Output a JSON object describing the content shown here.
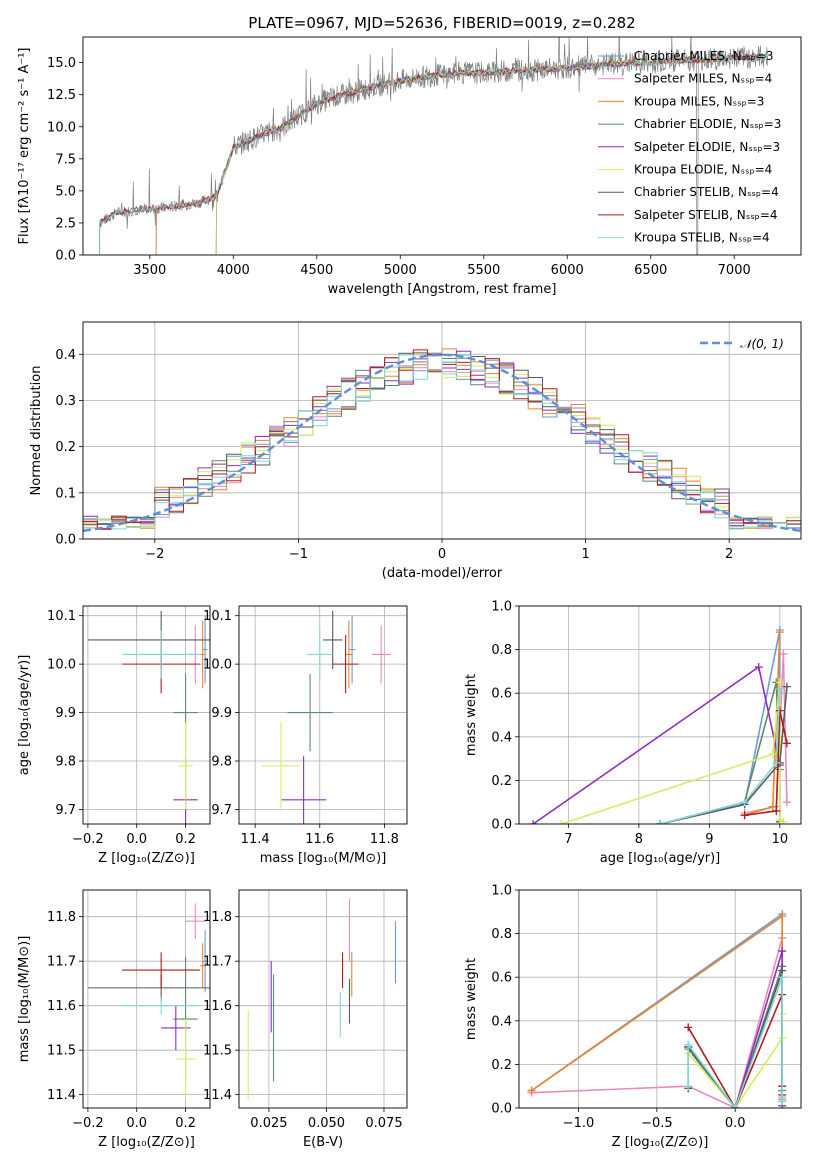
{
  "colors": {
    "Chabrier MILES": "#6a9bd8",
    "Salpeter MILES": "#e98abf",
    "Kroupa MILES": "#e8852d",
    "Chabrier ELODIE": "#5f8a6e",
    "Salpeter ELODIE": "#8e2fbf",
    "Kroupa ELODIE": "#d7ec5f",
    "Chabrier STELIB": "#5a5a5a",
    "Salpeter STELIB": "#b01b1b",
    "Kroupa STELIB": "#7fd8d8"
  },
  "chart_data": [
    {
      "id": "spectrum",
      "type": "line",
      "title": "PLATE=0967, MJD=52636, FIBERID=0019, z=0.282",
      "xlabel": "wavelength [Angstrom, rest frame]",
      "ylabel": "Flux [fλ10⁻¹⁷ erg cm⁻² s⁻¹ A⁻¹]",
      "xlim": [
        3100,
        7400
      ],
      "ylim": [
        0,
        17
      ],
      "xticks": [
        "3500",
        "4000",
        "4500",
        "5000",
        "5500",
        "6000",
        "6500",
        "7000"
      ],
      "yticks": [
        "0.0",
        "2.5",
        "5.0",
        "7.5",
        "10.0",
        "12.5",
        "15.0"
      ],
      "legend_position": "top-right",
      "legend": [
        "Chabrier MILES, Nₛₛₚ=3",
        "Salpeter MILES, Nₛₛₚ=4",
        "Kroupa MILES, Nₛₛₚ=3",
        "Chabrier ELODIE, Nₛₛₚ=3",
        "Salpeter ELODIE, Nₛₛₚ=3",
        "Kroupa ELODIE, Nₛₛₚ=4",
        "Chabrier STELIB, Nₛₛₚ=4",
        "Salpeter STELIB, Nₛₛₚ=4",
        "Kroupa STELIB, Nₛₛₚ=4"
      ],
      "series_models": [
        "Chabrier MILES",
        "Salpeter MILES",
        "Kroupa MILES",
        "Chabrier ELODIE",
        "Salpeter ELODIE",
        "Kroupa ELODIE",
        "Chabrier STELIB",
        "Salpeter STELIB",
        "Kroupa STELIB"
      ],
      "data_color": "#808080",
      "continuum": {
        "x": [
          3200,
          3300,
          3400,
          3500,
          3600,
          3700,
          3800,
          3900,
          4000,
          4100,
          4200,
          4300,
          4400,
          4500,
          4600,
          4700,
          4800,
          4900,
          5000,
          5100,
          5200,
          5300,
          5400,
          5500,
          5600,
          5700,
          5800,
          5900,
          6000,
          6100,
          6200,
          6300,
          6400,
          6500,
          6600,
          6700,
          6800,
          6900,
          7000,
          7100,
          7200
        ],
        "y": [
          2.5,
          3.3,
          3.5,
          3.6,
          3.7,
          3.9,
          4.1,
          4.6,
          8.4,
          9.0,
          9.5,
          10.0,
          10.9,
          11.8,
          12.3,
          12.6,
          13.0,
          13.3,
          13.6,
          13.8,
          14.0,
          14.1,
          14.2,
          14.2,
          14.3,
          14.4,
          14.4,
          14.5,
          14.6,
          14.7,
          14.8,
          14.9,
          15.0,
          15.0,
          15.1,
          15.2,
          15.2,
          15.3,
          15.4,
          15.4,
          15.5
        ]
      },
      "model_start": {
        "Chabrier MILES": 3540,
        "Salpeter MILES": 3540,
        "Kroupa MILES": 3540,
        "Chabrier ELODIE": 3900,
        "Salpeter ELODIE": 3900,
        "Kroupa ELODIE": 3900,
        "Chabrier STELIB": 3200,
        "Salpeter STELIB": 3200,
        "Kroupa STELIB": 3200
      }
    },
    {
      "id": "residuals",
      "type": "histogram",
      "xlabel": "(data-model)/error",
      "ylabel": "Normed distribution",
      "xlim": [
        -2.5,
        2.5
      ],
      "ylim": [
        0,
        0.47
      ],
      "xticks": [
        "−2",
        "−1",
        "0",
        "1",
        "2"
      ],
      "yticks": [
        "0.0",
        "0.1",
        "0.2",
        "0.3",
        "0.4"
      ],
      "legend_position": "top-right",
      "legend": [
        "𝒩(0, 1)"
      ],
      "normal_color": "#5b8fd8",
      "bin_width": 0.1,
      "bin_start": -2.5
    },
    {
      "id": "age-Z",
      "type": "scatter",
      "xlabel": "Z [log₁₀(Z/Z⊙)]",
      "ylabel": "age  [log₁₀(age/yr)]",
      "xlim": [
        -0.22,
        0.3
      ],
      "ylim": [
        9.67,
        10.12
      ],
      "xticks": [
        "−0.2",
        "0.0",
        "0.2"
      ],
      "yticks": [
        "9.7",
        "9.8",
        "9.9",
        "10.0",
        "10.1"
      ],
      "points": [
        {
          "model": "Chabrier MILES",
          "x": 0.28,
          "y": 10.03,
          "xerr": 0.01,
          "yerr": 0.07
        },
        {
          "model": "Salpeter MILES",
          "x": 0.24,
          "y": 10.02,
          "xerr": 0.03,
          "yerr": 0.06
        },
        {
          "model": "Kroupa MILES",
          "x": 0.27,
          "y": 10.02,
          "xerr": 0.01,
          "yerr": 0.07
        },
        {
          "model": "Chabrier ELODIE",
          "x": 0.2,
          "y": 9.9,
          "xerr": 0.05,
          "yerr": 0.08
        },
        {
          "model": "Salpeter ELODIE",
          "x": 0.2,
          "y": 9.72,
          "xerr": 0.05,
          "yerr": 0.09
        },
        {
          "model": "Kroupa ELODIE",
          "x": 0.2,
          "y": 9.79,
          "xerr": 0.03,
          "yerr": 0.09
        },
        {
          "model": "Chabrier STELIB",
          "x": 0.1,
          "y": 10.05,
          "xerr": 0.3,
          "yerr": 0.06
        },
        {
          "model": "Salpeter STELIB",
          "x": 0.1,
          "y": 10.0,
          "xerr": 0.16,
          "yerr": 0.06
        },
        {
          "model": "Kroupa STELIB",
          "x": 0.1,
          "y": 10.02,
          "xerr": 0.16,
          "yerr": 0.05
        }
      ]
    },
    {
      "id": "age-mass",
      "type": "scatter",
      "xlabel": "mass [log₁₀(M/M⊙)]",
      "ylabel": "",
      "xlim": [
        11.35,
        11.87
      ],
      "ylim": [
        9.67,
        10.12
      ],
      "xticks": [
        "11.4",
        "11.6",
        "11.8"
      ],
      "yticks": [
        "9.7",
        "9.8",
        "9.9",
        "10.0",
        "10.1"
      ],
      "points": [
        {
          "model": "Chabrier MILES",
          "x": 11.7,
          "y": 10.03,
          "xerr": 0.01,
          "yerr": 0.07
        },
        {
          "model": "Salpeter MILES",
          "x": 11.79,
          "y": 10.02,
          "xerr": 0.03,
          "yerr": 0.06
        },
        {
          "model": "Kroupa MILES",
          "x": 11.69,
          "y": 10.02,
          "xerr": 0.01,
          "yerr": 0.07
        },
        {
          "model": "Chabrier ELODIE",
          "x": 11.57,
          "y": 9.9,
          "xerr": 0.07,
          "yerr": 0.08
        },
        {
          "model": "Salpeter ELODIE",
          "x": 11.55,
          "y": 9.72,
          "xerr": 0.07,
          "yerr": 0.09
        },
        {
          "model": "Kroupa ELODIE",
          "x": 11.48,
          "y": 9.79,
          "xerr": 0.06,
          "yerr": 0.09
        },
        {
          "model": "Chabrier STELIB",
          "x": 11.64,
          "y": 10.05,
          "xerr": 0.03,
          "yerr": 0.06
        },
        {
          "model": "Salpeter STELIB",
          "x": 11.68,
          "y": 10.0,
          "xerr": 0.04,
          "yerr": 0.06
        },
        {
          "model": "Kroupa STELIB",
          "x": 11.6,
          "y": 10.02,
          "xerr": 0.04,
          "yerr": 0.05
        }
      ]
    },
    {
      "id": "weight-age",
      "type": "line",
      "xlabel": "age  [log₁₀(age/yr)]",
      "ylabel": "mass weight",
      "xlim": [
        6.3,
        10.3
      ],
      "ylim": [
        0,
        1
      ],
      "xticks": [
        "7",
        "8",
        "9",
        "10"
      ],
      "yticks": [
        "0.0",
        "0.2",
        "0.4",
        "0.6",
        "0.8",
        "1.0"
      ],
      "series": [
        {
          "model": "Chabrier MILES",
          "x": [
            8.3,
            9.5,
            10.0,
            10.0
          ],
          "y": [
            0.0,
            0.09,
            0.89,
            0.02
          ]
        },
        {
          "model": "Salpeter MILES",
          "x": [
            9.5,
            9.95,
            10.05,
            10.1
          ],
          "y": [
            0.05,
            0.08,
            0.78,
            0.1
          ]
        },
        {
          "model": "Kroupa MILES",
          "x": [
            9.5,
            9.9,
            10.0
          ],
          "y": [
            0.04,
            0.08,
            0.88
          ]
        },
        {
          "model": "Chabrier ELODIE",
          "x": [
            8.3,
            9.5,
            9.95,
            10.0
          ],
          "y": [
            0.0,
            0.1,
            0.65,
            0.25
          ]
        },
        {
          "model": "Salpeter ELODIE",
          "x": [
            6.5,
            9.7,
            10.0,
            10.0
          ],
          "y": [
            0.0,
            0.72,
            0.27,
            0.01
          ]
        },
        {
          "model": "Kroupa ELODIE",
          "x": [
            6.9,
            9.9,
            10.0,
            10.0,
            10.05
          ],
          "y": [
            0.0,
            0.32,
            0.65,
            0.02,
            0.01
          ]
        },
        {
          "model": "Chabrier STELIB",
          "x": [
            8.3,
            9.5,
            10.0,
            10.1
          ],
          "y": [
            0.0,
            0.09,
            0.28,
            0.63
          ]
        },
        {
          "model": "Salpeter STELIB",
          "x": [
            9.5,
            9.95,
            10.0,
            10.1
          ],
          "y": [
            0.04,
            0.06,
            0.52,
            0.37
          ]
        },
        {
          "model": "Kroupa STELIB",
          "x": [
            8.3,
            9.5,
            9.95,
            10.0
          ],
          "y": [
            0.0,
            0.1,
            0.28,
            0.62
          ]
        }
      ]
    },
    {
      "id": "mass-Z",
      "type": "scatter",
      "xlabel": "Z [log₁₀(Z/Z⊙)]",
      "ylabel": "mass [log₁₀(M/M⊙)]",
      "xlim": [
        -0.22,
        0.3
      ],
      "ylim": [
        11.37,
        11.86
      ],
      "xticks": [
        "−0.2",
        "0.0",
        "0.2"
      ],
      "yticks": [
        "11.4",
        "11.5",
        "11.6",
        "11.7",
        "11.8"
      ],
      "points": [
        {
          "model": "Chabrier MILES",
          "x": 0.28,
          "y": 11.7,
          "xerr": 0.01,
          "yerr": 0.07
        },
        {
          "model": "Salpeter MILES",
          "x": 0.24,
          "y": 11.79,
          "xerr": 0.04,
          "yerr": 0.04
        },
        {
          "model": "Kroupa MILES",
          "x": 0.27,
          "y": 11.69,
          "xerr": 0.01,
          "yerr": 0.05
        },
        {
          "model": "Chabrier ELODIE",
          "x": 0.2,
          "y": 11.57,
          "xerr": 0.05,
          "yerr": 0.14
        },
        {
          "model": "Salpeter ELODIE",
          "x": 0.16,
          "y": 11.55,
          "xerr": 0.06,
          "yerr": 0.05
        },
        {
          "model": "Kroupa ELODIE",
          "x": 0.2,
          "y": 11.48,
          "xerr": 0.04,
          "yerr": 0.09
        },
        {
          "model": "Chabrier STELIB",
          "x": 0.1,
          "y": 11.64,
          "xerr": 0.3,
          "yerr": 0.03
        },
        {
          "model": "Salpeter STELIB",
          "x": 0.1,
          "y": 11.68,
          "xerr": 0.16,
          "yerr": 0.04
        },
        {
          "model": "Kroupa STELIB",
          "x": 0.1,
          "y": 11.6,
          "xerr": 0.16,
          "yerr": 0.02
        }
      ]
    },
    {
      "id": "mass-EBV",
      "type": "scatter",
      "xlabel": "E(B-V)",
      "ylabel": "",
      "xlim": [
        0.012,
        0.085
      ],
      "ylim": [
        11.37,
        11.86
      ],
      "xticks": [
        "0.025",
        "0.050",
        "0.075"
      ],
      "yticks": [
        "11.4",
        "11.5",
        "11.6",
        "11.7",
        "11.8"
      ],
      "points": [
        {
          "model": "Chabrier MILES",
          "x": 0.08,
          "y": 11.72,
          "xerr": 0,
          "yerr": 0.07
        },
        {
          "model": "Salpeter MILES",
          "x": 0.06,
          "y": 11.77,
          "xerr": 0,
          "yerr": 0.07
        },
        {
          "model": "Kroupa MILES",
          "x": 0.061,
          "y": 11.67,
          "xerr": 0,
          "yerr": 0.05
        },
        {
          "model": "Chabrier ELODIE",
          "x": 0.027,
          "y": 11.55,
          "xerr": 0,
          "yerr": 0.12
        },
        {
          "model": "Salpeter ELODIE",
          "x": 0.026,
          "y": 11.62,
          "xerr": 0,
          "yerr": 0.08
        },
        {
          "model": "Kroupa ELODIE",
          "x": 0.016,
          "y": 11.49,
          "xerr": 0,
          "yerr": 0.1
        },
        {
          "model": "Chabrier STELIB",
          "x": 0.06,
          "y": 11.61,
          "xerr": 0,
          "yerr": 0.05
        },
        {
          "model": "Salpeter STELIB",
          "x": 0.057,
          "y": 11.68,
          "xerr": 0,
          "yerr": 0.04
        },
        {
          "model": "Kroupa STELIB",
          "x": 0.056,
          "y": 11.58,
          "xerr": 0,
          "yerr": 0.05
        }
      ]
    },
    {
      "id": "weight-Z",
      "type": "line",
      "xlabel": "Z [log₁₀(Z/Z⊙)]",
      "ylabel": "mass weight",
      "xlim": [
        -1.38,
        0.42
      ],
      "ylim": [
        0,
        1
      ],
      "xticks": [
        "−1.0",
        "−0.5",
        "0.0"
      ],
      "yticks": [
        "0.0",
        "0.2",
        "0.4",
        "0.6",
        "0.8",
        "1.0"
      ],
      "series": [
        {
          "model": "Chabrier MILES",
          "x": [
            -1.3,
            0.3,
            0.3
          ],
          "y": [
            0.08,
            0.89,
            0.03
          ]
        },
        {
          "model": "Salpeter MILES",
          "x": [
            -1.3,
            -0.3,
            0.0,
            0.3,
            0.3
          ],
          "y": [
            0.07,
            0.1,
            0.0,
            0.78,
            0.05
          ]
        },
        {
          "model": "Kroupa MILES",
          "x": [
            -1.3,
            0.3,
            0.3
          ],
          "y": [
            0.08,
            0.88,
            0.04
          ]
        },
        {
          "model": "Chabrier ELODIE",
          "x": [
            -0.3,
            0.0,
            0.3,
            0.3
          ],
          "y": [
            0.27,
            0.0,
            0.65,
            0.08
          ]
        },
        {
          "model": "Salpeter ELODIE",
          "x": [
            -0.3,
            0.0,
            0.3,
            0.3
          ],
          "y": [
            0.28,
            0.0,
            0.72,
            0.01
          ]
        },
        {
          "model": "Kroupa ELODIE",
          "x": [
            -0.3,
            0.0,
            0.3,
            0.3
          ],
          "y": [
            0.25,
            0.0,
            0.32,
            0.43
          ]
        },
        {
          "model": "Chabrier STELIB",
          "x": [
            -0.3,
            -0.3,
            0.0,
            0.3,
            0.3
          ],
          "y": [
            0.09,
            0.28,
            0.0,
            0.63,
            0.06
          ]
        },
        {
          "model": "Salpeter STELIB",
          "x": [
            -0.3,
            0.0,
            0.3,
            0.3
          ],
          "y": [
            0.37,
            0.0,
            0.52,
            0.1
          ]
        },
        {
          "model": "Kroupa STELIB",
          "x": [
            -0.3,
            -0.3,
            0.0,
            0.3,
            0.3
          ],
          "y": [
            0.1,
            0.29,
            0.0,
            0.6,
            0.03
          ]
        }
      ]
    }
  ]
}
